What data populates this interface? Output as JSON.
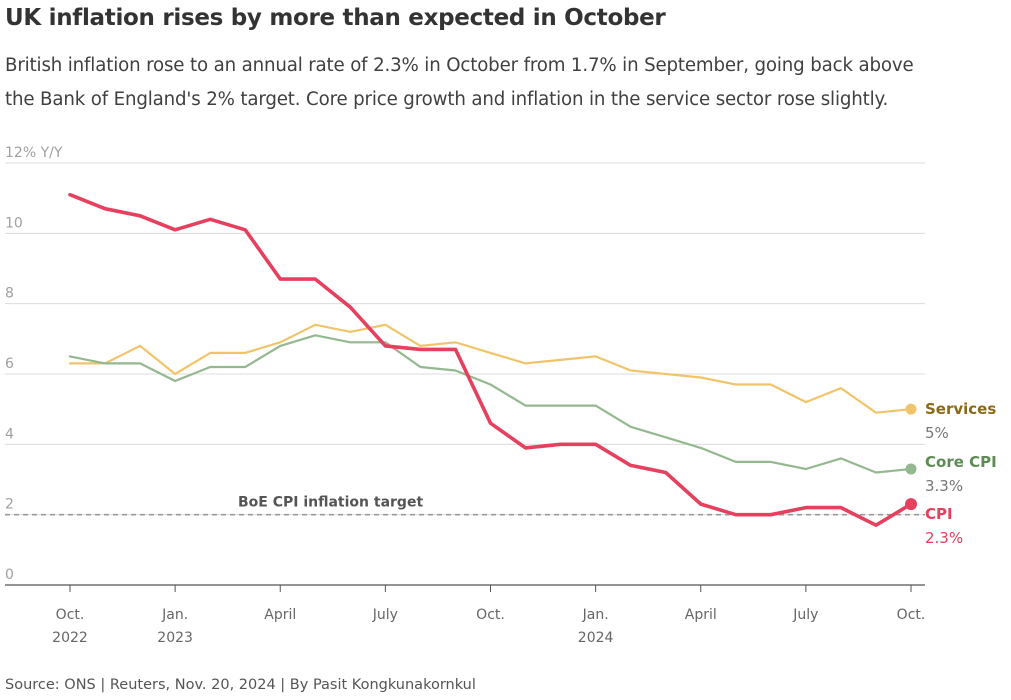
{
  "title": "UK inflation rises by more than expected in October",
  "subtitle_lines": [
    "British inflation rose to an annual rate of 2.3% in October from 1.7% in September, going back above",
    "the Bank of England's 2% target. Core price growth and inflation in the service sector rose slightly."
  ],
  "source": "Source: ONS | Reuters, Nov. 20, 2024 | By Pasit Kongkunakornkul",
  "colors": {
    "cpi": "#e5405e",
    "core_cpi": "#94b88f",
    "services": "#f2c46a",
    "services_label": "#8a6a14",
    "core_label": "#5e8a55",
    "cpi_label": "#e5405e",
    "grid": "#dcdcdc",
    "target_line": "#9a9a9a"
  },
  "chart_data": {
    "type": "line",
    "x": [
      "2022-10",
      "2022-11",
      "2022-12",
      "2023-01",
      "2023-02",
      "2023-03",
      "2023-04",
      "2023-05",
      "2023-06",
      "2023-07",
      "2023-08",
      "2023-09",
      "2023-10",
      "2023-11",
      "2023-12",
      "2024-01",
      "2024-02",
      "2024-03",
      "2024-04",
      "2024-05",
      "2024-06",
      "2024-07",
      "2024-08",
      "2024-09",
      "2024-10"
    ],
    "series": [
      {
        "name": "Services",
        "values": [
          6.3,
          6.3,
          6.8,
          6.0,
          6.6,
          6.6,
          6.9,
          7.4,
          7.2,
          7.4,
          6.8,
          6.9,
          6.6,
          6.3,
          6.4,
          6.5,
          6.1,
          6.0,
          5.9,
          5.7,
          5.7,
          5.2,
          5.6,
          4.9,
          5.0
        ],
        "end_label": "5%"
      },
      {
        "name": "Core CPI",
        "values": [
          6.5,
          6.3,
          6.3,
          5.8,
          6.2,
          6.2,
          6.8,
          7.1,
          6.9,
          6.9,
          6.2,
          6.1,
          5.7,
          5.1,
          5.1,
          5.1,
          4.5,
          4.2,
          3.9,
          3.5,
          3.5,
          3.3,
          3.6,
          3.2,
          3.3
        ],
        "end_label": "3.3%"
      },
      {
        "name": "CPI",
        "values": [
          11.1,
          10.7,
          10.5,
          10.1,
          10.4,
          10.1,
          8.7,
          8.7,
          7.9,
          6.8,
          6.7,
          6.7,
          4.6,
          3.9,
          4.0,
          4.0,
          3.4,
          3.2,
          2.3,
          2.0,
          2.0,
          2.2,
          2.2,
          1.7,
          2.3
        ],
        "end_label": "2.3%"
      }
    ],
    "target": {
      "value": 2,
      "label": "BoE CPI inflation target"
    },
    "ylim": [
      0,
      12
    ],
    "yticks": [
      0,
      2,
      4,
      6,
      8,
      10,
      12
    ],
    "ytick_labels": [
      "0",
      "2",
      "4",
      "6",
      "8",
      "10",
      "12% Y/Y"
    ],
    "xticks": [
      {
        "x": "2022-10",
        "label": "Oct.",
        "sublabel": "2022"
      },
      {
        "x": "2023-01",
        "label": "Jan.",
        "sublabel": "2023"
      },
      {
        "x": "2023-04",
        "label": "April",
        "sublabel": ""
      },
      {
        "x": "2023-07",
        "label": "July",
        "sublabel": ""
      },
      {
        "x": "2023-10",
        "label": "Oct.",
        "sublabel": ""
      },
      {
        "x": "2024-01",
        "label": "Jan.",
        "sublabel": "2024"
      },
      {
        "x": "2024-04",
        "label": "April",
        "sublabel": ""
      },
      {
        "x": "2024-07",
        "label": "July",
        "sublabel": ""
      },
      {
        "x": "2024-10",
        "label": "Oct.",
        "sublabel": ""
      }
    ],
    "grid": true
  }
}
